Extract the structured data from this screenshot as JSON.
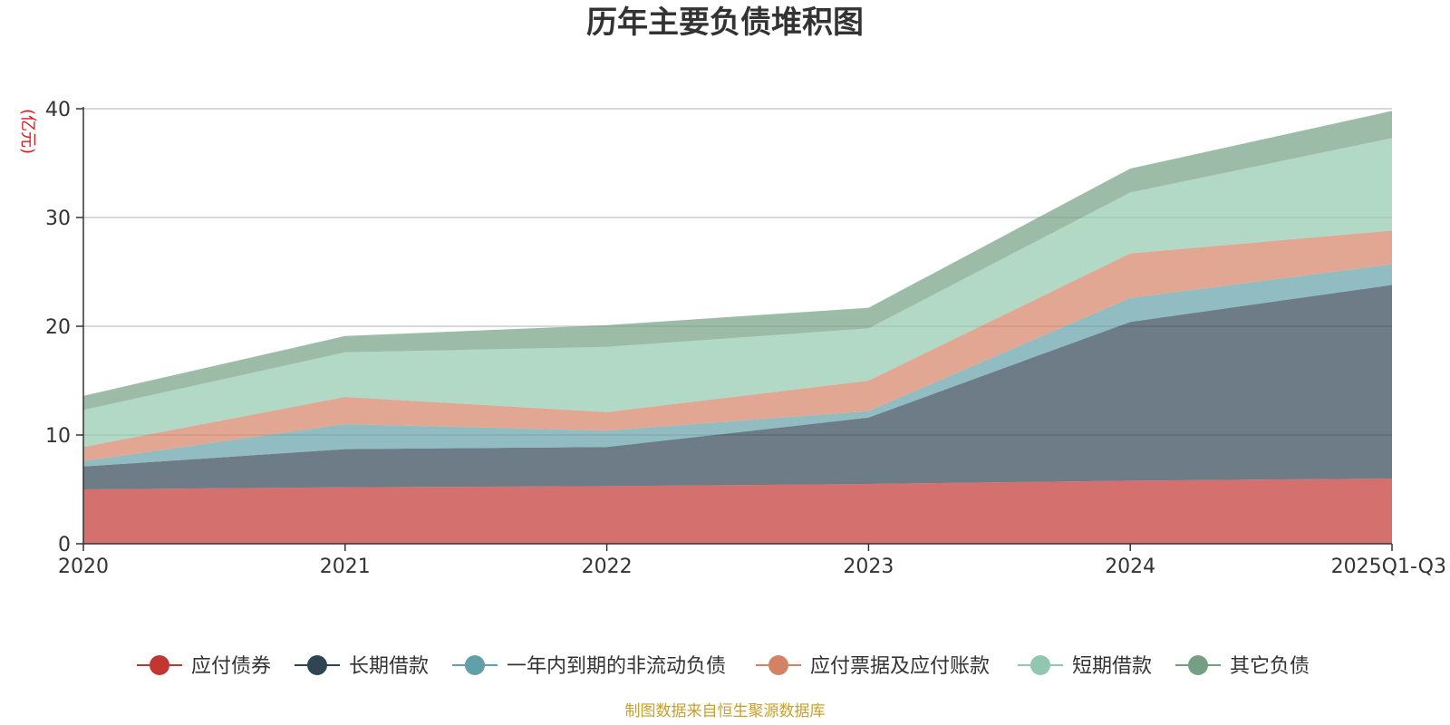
{
  "chart_data": {
    "type": "area",
    "stacked": true,
    "title": "历年主要负债堆积图",
    "ylabel": "(亿元)",
    "xlabel": "",
    "ylim": [
      0,
      40
    ],
    "yticks": [
      "0",
      "10",
      "20",
      "30",
      "40"
    ],
    "categories": [
      "2020",
      "2021",
      "2022",
      "2023",
      "2024",
      "2025Q1-Q3"
    ],
    "grid": true,
    "legend_position": "bottom",
    "series": [
      {
        "name": "应付债券",
        "color": "#c23531",
        "values": [
          5.0,
          5.2,
          5.3,
          5.5,
          5.8,
          6.0
        ]
      },
      {
        "name": "长期借款",
        "color": "#2f4554",
        "values": [
          2.1,
          3.5,
          3.6,
          6.1,
          14.6,
          17.8
        ]
      },
      {
        "name": "一年内到期的非流动负债",
        "color": "#61a0a8",
        "values": [
          0.5,
          2.3,
          1.5,
          0.6,
          2.2,
          1.9
        ]
      },
      {
        "name": "应付票据及应付账款",
        "color": "#d48265",
        "values": [
          1.3,
          2.5,
          1.7,
          2.8,
          4.1,
          3.1
        ]
      },
      {
        "name": "短期借款",
        "color": "#91c7ae",
        "values": [
          3.4,
          4.1,
          6.0,
          4.8,
          5.6,
          8.5
        ]
      },
      {
        "name": "其它负债",
        "color": "#749f83",
        "values": [
          1.3,
          1.5,
          2.0,
          1.9,
          2.2,
          2.5
        ]
      }
    ],
    "source_note": "制图数据来自恒生聚源数据库"
  },
  "colors": {
    "unit": "#e0171b",
    "source": "#c8a02c",
    "axis": "#333333",
    "grid": "#cccccc"
  }
}
